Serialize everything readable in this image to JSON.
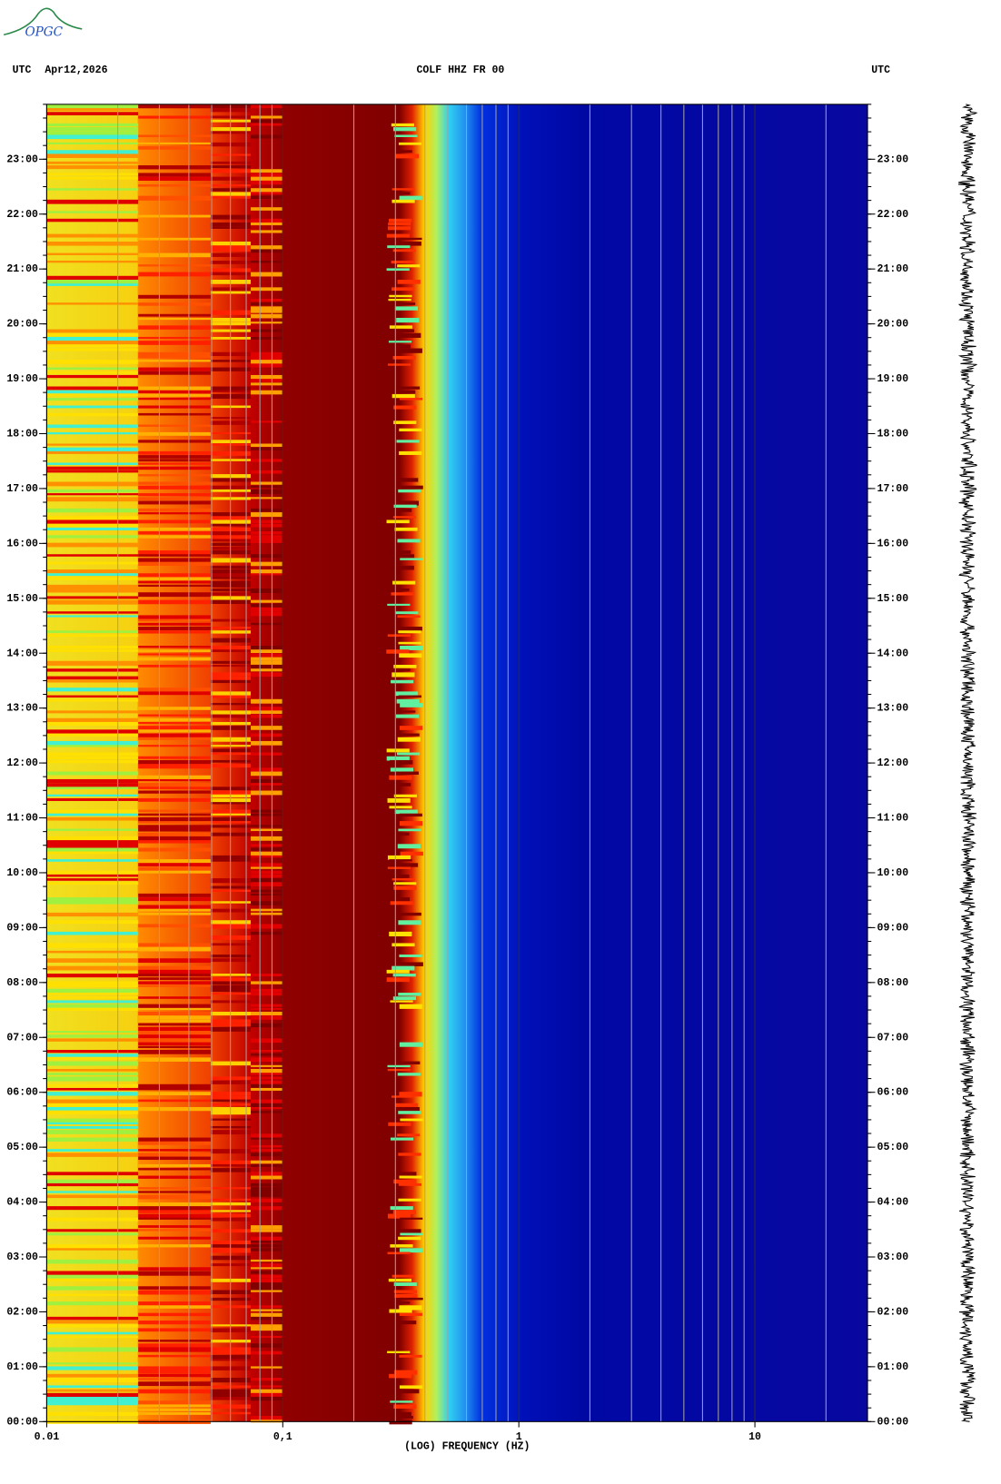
{
  "header": {
    "logo": "OPGC"
  },
  "chart_data": {
    "type": "spectrogram",
    "title": "COLF HHZ FR 00",
    "date": "Apr12,2026",
    "left_label": "UTC",
    "right_label": "UTC",
    "xlabel": "(LOG) FREQUENCY (HZ)",
    "xlog": true,
    "xlim": [
      0.01,
      30
    ],
    "xticks": [
      0.01,
      {
        "value": 0.1,
        "label": "0,1"
      },
      1,
      10
    ],
    "ylim": [
      0,
      24
    ],
    "yticks": [
      {
        "value": 0,
        "label": "00:00"
      },
      {
        "value": 1,
        "label": "01:00"
      },
      {
        "value": 2,
        "label": "02:00"
      },
      {
        "value": 3,
        "label": "03:00"
      },
      {
        "value": 4,
        "label": "04:00"
      },
      {
        "value": 5,
        "label": "05:00"
      },
      {
        "value": 6,
        "label": "06:00"
      },
      {
        "value": 7,
        "label": "07:00"
      },
      {
        "value": 8,
        "label": "08:00"
      },
      {
        "value": 9,
        "label": "09:00"
      },
      {
        "value": 10,
        "label": "10:00"
      },
      {
        "value": 11,
        "label": "11:00"
      },
      {
        "value": 12,
        "label": "12:00"
      },
      {
        "value": 13,
        "label": "13:00"
      },
      {
        "value": 14,
        "label": "14:00"
      },
      {
        "value": 15,
        "label": "15:00"
      },
      {
        "value": 16,
        "label": "16:00"
      },
      {
        "value": 17,
        "label": "17:00"
      },
      {
        "value": 18,
        "label": "18:00"
      },
      {
        "value": 19,
        "label": "19:00"
      },
      {
        "value": 20,
        "label": "20:00"
      },
      {
        "value": 21,
        "label": "21:00"
      },
      {
        "value": 22,
        "label": "22:00"
      },
      {
        "value": 23,
        "label": "23:00"
      }
    ]
  }
}
